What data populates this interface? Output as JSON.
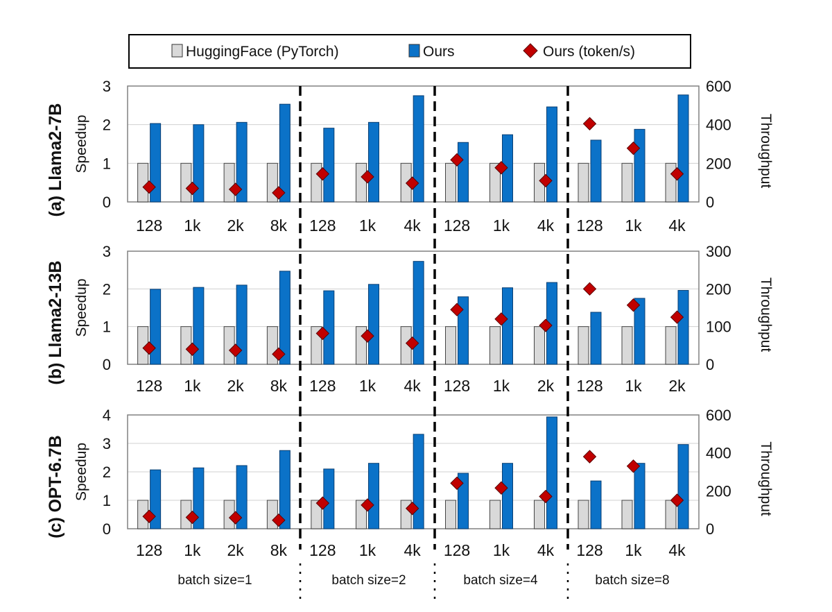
{
  "legend": {
    "items": [
      {
        "label": "HuggingFace (PyTorch)",
        "type": "bar",
        "color": "#d9d9d9"
      },
      {
        "label": "Ours",
        "type": "bar",
        "color": "#0b72c8"
      },
      {
        "label": "Ours (token/s)",
        "type": "marker",
        "color": "#c00000"
      }
    ]
  },
  "axes": {
    "left_title": "Speedup",
    "right_title": "Throughput"
  },
  "group_labels": [
    "batch size=1",
    "batch size=2",
    "batch size=4",
    "batch size=8"
  ],
  "colors": {
    "baseline": "#d9d9d9",
    "ours": "#0b72c8",
    "marker": "#c00000",
    "grid": "#d0d0d0"
  },
  "chart_data": [
    {
      "type": "bar",
      "title": "(a) Llama2-7B",
      "ylabel": "Speedup",
      "y2label": "Throughput",
      "ylim": [
        0,
        3
      ],
      "yticks": [
        0,
        1,
        2,
        3
      ],
      "y2lim": [
        0,
        600
      ],
      "y2ticks": [
        0,
        200,
        400,
        600
      ],
      "categories": [
        "128",
        "1k",
        "2k",
        "8k",
        "128",
        "1k",
        "4k",
        "128",
        "1k",
        "4k",
        "128",
        "1k",
        "4k"
      ],
      "series": [
        {
          "name": "HuggingFace (PyTorch)",
          "axis": "left",
          "values": [
            1,
            1,
            1,
            1,
            1,
            1,
            1,
            1,
            1,
            1,
            1,
            1,
            1
          ]
        },
        {
          "name": "Ours",
          "axis": "left",
          "values": [
            2.03,
            2.0,
            2.06,
            2.53,
            1.91,
            2.06,
            2.75,
            1.54,
            1.74,
            2.46,
            1.6,
            1.88,
            2.77
          ]
        },
        {
          "name": "Ours (token/s)",
          "axis": "right",
          "values": [
            77,
            70,
            65,
            47,
            145,
            130,
            97,
            218,
            177,
            110,
            405,
            278,
            145
          ]
        }
      ]
    },
    {
      "type": "bar",
      "title": "(b) Llama2-13B",
      "ylabel": "Speedup",
      "y2label": "Throughput",
      "ylim": [
        0,
        3
      ],
      "yticks": [
        0,
        1,
        2,
        3
      ],
      "y2lim": [
        0,
        300
      ],
      "y2ticks": [
        0,
        100,
        200,
        300
      ],
      "categories": [
        "128",
        "1k",
        "2k",
        "8k",
        "128",
        "1k",
        "4k",
        "128",
        "1k",
        "2k",
        "128",
        "1k",
        "2k"
      ],
      "series": [
        {
          "name": "HuggingFace (PyTorch)",
          "axis": "left",
          "values": [
            1,
            1,
            1,
            1,
            1,
            1,
            1,
            1,
            1,
            1,
            1,
            1,
            1
          ]
        },
        {
          "name": "Ours",
          "axis": "left",
          "values": [
            1.99,
            2.04,
            2.1,
            2.47,
            1.95,
            2.12,
            2.73,
            1.79,
            2.03,
            2.17,
            1.38,
            1.75,
            1.96
          ]
        },
        {
          "name": "Ours (token/s)",
          "axis": "right",
          "values": [
            43,
            40,
            37,
            27,
            82,
            75,
            56,
            145,
            120,
            103,
            200,
            157,
            125
          ]
        }
      ]
    },
    {
      "type": "bar",
      "title": "(c) OPT-6.7B",
      "ylabel": "Speedup",
      "y2label": "Throughput",
      "ylim": [
        0,
        4
      ],
      "yticks": [
        0,
        1,
        2,
        3,
        4
      ],
      "y2lim": [
        0,
        600
      ],
      "y2ticks": [
        0,
        200,
        400,
        600
      ],
      "categories": [
        "128",
        "1k",
        "2k",
        "8k",
        "128",
        "1k",
        "4k",
        "128",
        "1k",
        "4k",
        "128",
        "1k",
        "4k"
      ],
      "series": [
        {
          "name": "HuggingFace (PyTorch)",
          "axis": "left",
          "values": [
            1,
            1,
            1,
            1,
            1,
            1,
            1,
            1,
            1,
            1,
            1,
            1,
            1
          ]
        },
        {
          "name": "Ours",
          "axis": "left",
          "values": [
            2.07,
            2.14,
            2.22,
            2.75,
            2.1,
            2.3,
            3.32,
            1.95,
            2.3,
            3.93,
            1.68,
            2.3,
            2.96
          ]
        },
        {
          "name": "Ours (token/s)",
          "axis": "right",
          "values": [
            65,
            60,
            58,
            45,
            135,
            125,
            107,
            240,
            215,
            170,
            380,
            330,
            150
          ]
        }
      ]
    }
  ]
}
